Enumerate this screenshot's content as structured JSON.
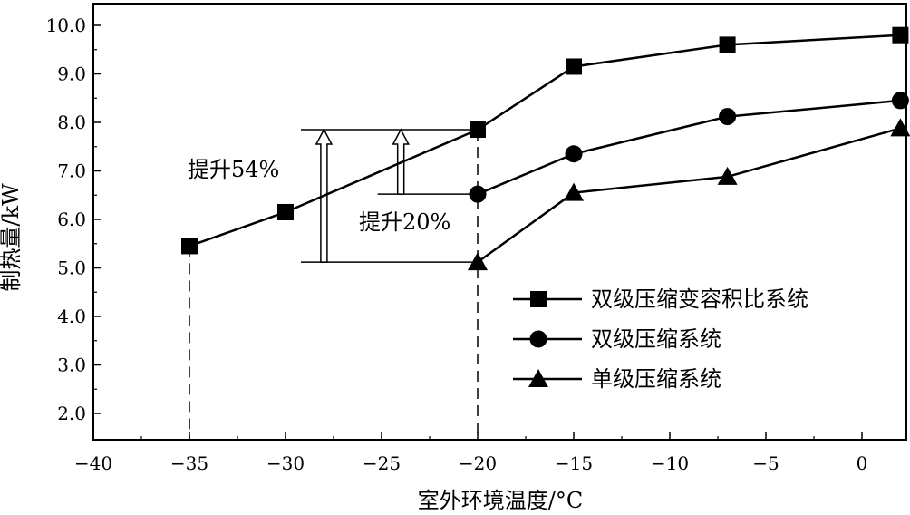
{
  "chart_data": {
    "type": "line",
    "xlabel": "室外环境温度/°C",
    "ylabel": "制热量/kW",
    "xlim": [
      -40,
      2
    ],
    "ylim": [
      1.5,
      10.5
    ],
    "x_ticks": [
      -40,
      -35,
      -30,
      -25,
      -20,
      -15,
      -10,
      -5,
      0
    ],
    "x_tick_labels": [
      "−40",
      "−35",
      "−30",
      "−25",
      "−20",
      "−15",
      "−10",
      "−5",
      "0"
    ],
    "y_ticks": [
      2.0,
      3.0,
      4.0,
      5.0,
      6.0,
      7.0,
      8.0,
      9.0,
      10.0
    ],
    "y_tick_labels": [
      "2.0",
      "3.0",
      "4.0",
      "5.0",
      "6.0",
      "7.0",
      "8.0",
      "9.0",
      "10.0"
    ],
    "grid": false,
    "legend_position": "bottom-right",
    "series": [
      {
        "name": "双级压缩变容积比系统",
        "marker": "square",
        "x": [
          -35,
          -30,
          -20,
          -15,
          -7,
          2
        ],
        "y": [
          5.45,
          6.15,
          7.85,
          9.15,
          9.6,
          9.8
        ]
      },
      {
        "name": "双级压缩系统",
        "marker": "circle",
        "x": [
          -20,
          -15,
          -7,
          2
        ],
        "y": [
          6.52,
          7.35,
          8.12,
          8.45
        ]
      },
      {
        "name": "单级压缩系统",
        "marker": "triangle",
        "x": [
          -20,
          -15,
          -7,
          2
        ],
        "y": [
          5.12,
          6.55,
          6.88,
          7.88
        ]
      }
    ],
    "dashed_lines": [
      {
        "x": -35,
        "from_y": 5.45
      },
      {
        "x": -20,
        "from_y": 7.85
      }
    ],
    "annotations": [
      {
        "text": "提升54%",
        "arrow_x": -28,
        "from_y": 5.12,
        "to_y": 7.85
      },
      {
        "text": "提升20%",
        "arrow_x": -24,
        "from_y": 6.52,
        "to_y": 7.85
      }
    ]
  }
}
